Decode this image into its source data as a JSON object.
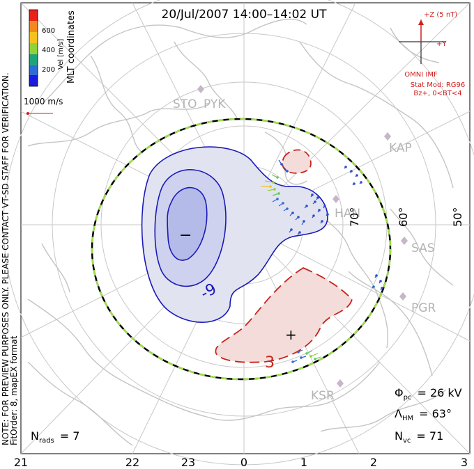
{
  "title": "20/Jul/2007 14:00–14:02 UT",
  "velocity_scale": {
    "label": "Vel [m/s]",
    "ticks": [
      "600",
      "400",
      "200"
    ],
    "colors": [
      "#e8231c",
      "#f08a1e",
      "#f5c21d",
      "#8fd23a",
      "#1fa47a",
      "#2e6bd6",
      "#1a1ae0"
    ]
  },
  "coord_label": "MLT coordinates",
  "ref_vector_label": "1000 m/s",
  "preview_note": "NOTE: FOR PREVIEW PURPOSES ONLY. PLEASE CONTACT VT-SD STAFF FOR VERIFICATION.",
  "fit_note": "FitOrder: 8, mapEX format",
  "imf": {
    "bz_label": "+Z (5 nT)",
    "by_label": "+Y",
    "source": "OMNI IMF",
    "model": "Stat Mod: RG96",
    "condition": "Bz+, 0<BT<4"
  },
  "stations": [
    "STO",
    "PYK",
    "KAP",
    "SAS",
    "PGR",
    "KSR",
    "HAN"
  ],
  "latitude_labels": [
    "70°",
    "60°",
    "50°"
  ],
  "mlt_labels": [
    "21",
    "22",
    "23",
    "0",
    "1",
    "2",
    "3"
  ],
  "contour_labels": [
    "-9",
    "3"
  ],
  "cell_markers": [
    "−",
    "+"
  ],
  "stats": {
    "phi_pc_label": "Φ",
    "phi_pc_sub": "pc",
    "phi_pc_value": "= 26 kV",
    "lambda_label": "Λ",
    "lambda_sub": "HM",
    "lambda_value": "= 63°",
    "nvc_label": "N",
    "nvc_sub": "vc",
    "nvc_value": "= 71",
    "nrads_label": "N",
    "nrads_sub": "rads",
    "nrads_value": "= 7"
  }
}
